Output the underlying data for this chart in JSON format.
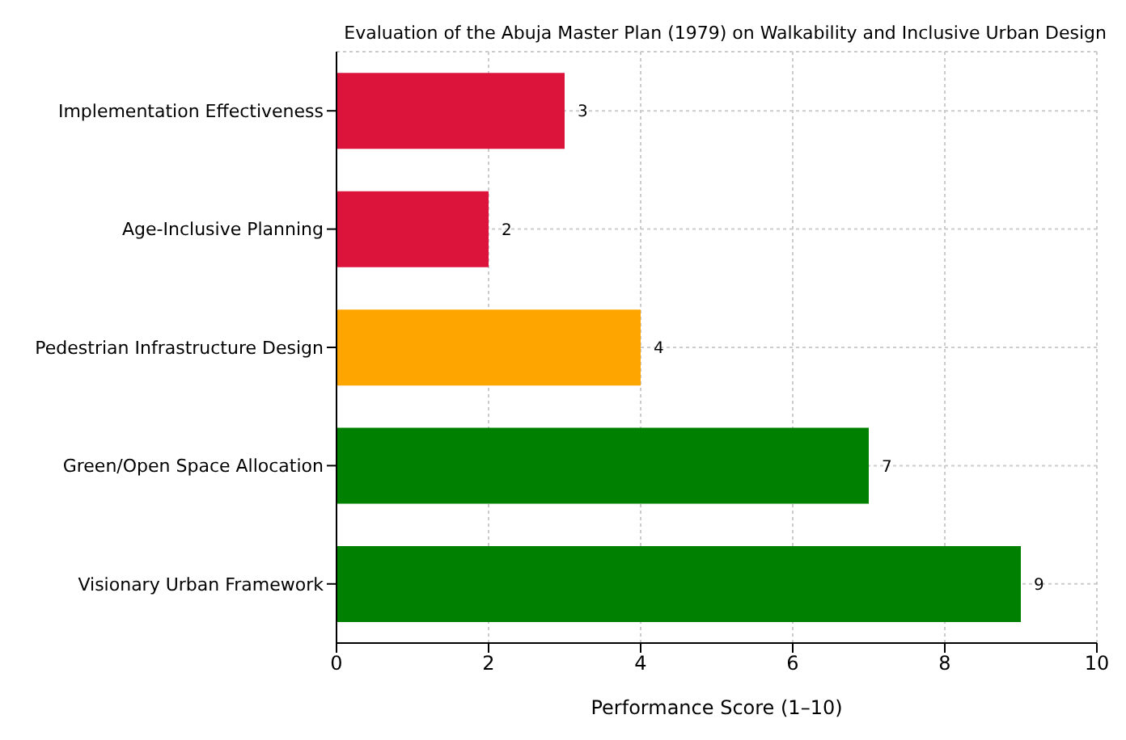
{
  "chart_data": {
    "type": "bar",
    "orientation": "horizontal",
    "title": "Evaluation of the Abuja Master Plan (1979) on Walkability and Inclusive Urban Design",
    "xlabel": "Performance Score (1–10)",
    "categories": [
      "Implementation Effectiveness",
      "Age-Inclusive Planning",
      "Pedestrian Infrastructure Design",
      "Green/Open Space Allocation",
      "Visionary Urban Framework"
    ],
    "values": [
      3,
      2,
      4,
      7,
      9
    ],
    "colors": [
      "#dc143c",
      "#dc143c",
      "#ffa500",
      "#008000",
      "#008000"
    ],
    "xlim": [
      0,
      10
    ],
    "xticks": [
      0,
      2,
      4,
      6,
      8,
      10
    ],
    "grid": true,
    "data_labels": true
  }
}
